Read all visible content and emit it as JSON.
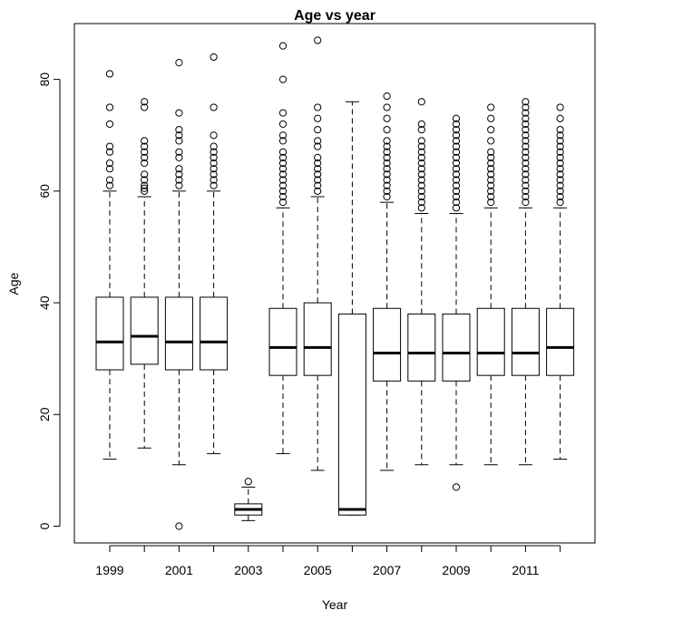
{
  "chart_data": {
    "type": "boxplot",
    "title": "Age vs year",
    "xlabel": "Year",
    "ylabel": "Age",
    "ylim": [
      -3,
      90
    ],
    "y_ticks": [
      0,
      20,
      40,
      60,
      80
    ],
    "x_tick_labels": [
      "1999",
      "2001",
      "2003",
      "2005",
      "2007",
      "2009",
      "2011"
    ],
    "grid": false,
    "categories": [
      "1999",
      "2000",
      "2001",
      "2002",
      "2003",
      "2004",
      "2005",
      "2006",
      "2007",
      "2008",
      "2009",
      "2010",
      "2011",
      "2012"
    ],
    "boxes": [
      {
        "category": "1999",
        "whisker_low": 12,
        "q1": 28,
        "median": 33,
        "q3": 41,
        "whisker_high": 60,
        "outliers": [
          61,
          62,
          64,
          65,
          67,
          68,
          72,
          75,
          81
        ]
      },
      {
        "category": "2000",
        "whisker_low": 14,
        "q1": 29,
        "median": 34,
        "q3": 41,
        "whisker_high": 59,
        "outliers": [
          60,
          60.5,
          61,
          62,
          63,
          65,
          66,
          67,
          68,
          69,
          75,
          76
        ]
      },
      {
        "category": "2001",
        "whisker_low": 11,
        "q1": 28,
        "median": 33,
        "q3": 41,
        "whisker_high": 60,
        "outliers": [
          0,
          61,
          62,
          63,
          64,
          66,
          67,
          69,
          70,
          71,
          74,
          83
        ]
      },
      {
        "category": "2002",
        "whisker_low": 13,
        "q1": 28,
        "median": 33,
        "q3": 41,
        "whisker_high": 60,
        "outliers": [
          61,
          62,
          63,
          64,
          65,
          66,
          67,
          68,
          70,
          75,
          84
        ]
      },
      {
        "category": "2003",
        "whisker_low": 1,
        "q1": 2,
        "median": 3,
        "q3": 4,
        "whisker_high": 7,
        "outliers": [
          8
        ]
      },
      {
        "category": "2004",
        "whisker_low": 13,
        "q1": 27,
        "median": 32,
        "q3": 39,
        "whisker_high": 57,
        "outliers": [
          58,
          59,
          60,
          61,
          62,
          63,
          64,
          65,
          66,
          67,
          69,
          70,
          72,
          74,
          80,
          86
        ]
      },
      {
        "category": "2005",
        "whisker_low": 10,
        "q1": 27,
        "median": 32,
        "q3": 40,
        "whisker_high": 59,
        "outliers": [
          60,
          61,
          62,
          63,
          64,
          65,
          66,
          68,
          69,
          71,
          73,
          75,
          87
        ]
      },
      {
        "category": "2006",
        "whisker_low": 2,
        "q1": 2,
        "median": 3,
        "q3": 38,
        "whisker_high": 76,
        "outliers": []
      },
      {
        "category": "2007",
        "whisker_low": 10,
        "q1": 26,
        "median": 31,
        "q3": 39,
        "whisker_high": 58,
        "outliers": [
          59,
          60,
          61,
          62,
          63,
          64,
          65,
          66,
          67,
          68,
          69,
          71,
          73,
          75,
          77
        ]
      },
      {
        "category": "2008",
        "whisker_low": 11,
        "q1": 26,
        "median": 31,
        "q3": 38,
        "whisker_high": 56,
        "outliers": [
          57,
          58,
          59,
          60,
          61,
          62,
          63,
          64,
          65,
          66,
          67,
          68,
          69,
          71,
          72,
          76
        ]
      },
      {
        "category": "2009",
        "whisker_low": 11,
        "q1": 26,
        "median": 31,
        "q3": 38,
        "whisker_high": 56,
        "outliers": [
          7,
          57,
          58,
          59,
          60,
          61,
          62,
          63,
          64,
          65,
          66,
          67,
          68,
          69,
          70,
          71,
          72,
          73
        ]
      },
      {
        "category": "2010",
        "whisker_low": 11,
        "q1": 27,
        "median": 31,
        "q3": 39,
        "whisker_high": 57,
        "outliers": [
          58,
          59,
          60,
          61,
          62,
          63,
          64,
          65,
          66,
          67,
          69,
          71,
          73,
          75
        ]
      },
      {
        "category": "2011",
        "whisker_low": 11,
        "q1": 27,
        "median": 31,
        "q3": 39,
        "whisker_high": 57,
        "outliers": [
          58,
          59,
          60,
          61,
          62,
          63,
          64,
          65,
          66,
          67,
          68,
          69,
          70,
          71,
          72,
          73,
          74,
          75,
          76
        ]
      },
      {
        "category": "2012",
        "whisker_low": 12,
        "q1": 27,
        "median": 32,
        "q3": 39,
        "whisker_high": 57,
        "outliers": [
          58,
          59,
          60,
          61,
          62,
          63,
          64,
          65,
          66,
          67,
          68,
          69,
          70,
          71,
          73,
          75
        ]
      }
    ]
  }
}
